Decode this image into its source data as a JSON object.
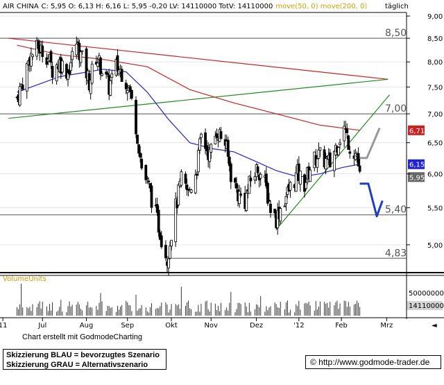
{
  "header": {
    "title": "AIR CHINA",
    "ohlc": "C: 5,95 O: 6,13 H: 6,16 L: 5,95 -0,20 LV: 14110000 TotV: 14110000",
    "ma_label": "move(50, 0) move(200, 0)",
    "period": "täglich"
  },
  "volume_panel": {
    "label": "VolumeUnits",
    "scale_label": "50000000",
    "current_label": "14110000"
  },
  "footer": {
    "credit": "Chart erstellt mit GodmodeCharting",
    "scenario_blue": "Skizzierung BLAU = bevorzugtes Szenario",
    "scenario_gray": "Skizzierung GRAU = Alternativszenario",
    "url": "© http://www.godmode-trader.de"
  },
  "colors": {
    "candle": "#000000",
    "ma50": "#2222cc",
    "ma200": "#cc2222",
    "trendline": "#228822",
    "scenario_blue": "#1a3fbf",
    "scenario_gray": "#999999",
    "level_line": "#555555"
  },
  "chart_data": {
    "type": "candlestick",
    "y_scale": "log",
    "y_range": [
      4.68,
      9.05
    ],
    "y_ticks": [
      "9,00",
      "8,50",
      "8,00",
      "7,50",
      "7,00",
      "6,50",
      "6,00",
      "5,50",
      "5,00"
    ],
    "x_ticks": [
      "11",
      "Jul",
      "Aug",
      "Sep",
      "Okt",
      "Nov",
      "Dez",
      "'12",
      "Feb",
      "Mrz"
    ],
    "price_levels": [
      {
        "value": 8.5,
        "label": "8,50"
      },
      {
        "value": 7.0,
        "label": "7,00"
      },
      {
        "value": 5.4,
        "label": "5,40"
      },
      {
        "value": 4.83,
        "label": "4,83"
      }
    ],
    "last_values": [
      {
        "name": "move(200, 0)",
        "value": 6.71,
        "label": "6,71",
        "color": "#cc2222"
      },
      {
        "name": "move(50, 0)",
        "value": 6.15,
        "label": "6,15",
        "color": "#2222cc"
      },
      {
        "name": "close",
        "value": 5.95,
        "label": "5,95",
        "color": "#666666"
      }
    ],
    "close_series": [
      [
        "2011-06-20",
        7.3
      ],
      [
        "2011-06-24",
        7.6
      ],
      [
        "2011-06-29",
        8.1
      ],
      [
        "2011-07-05",
        8.3
      ],
      [
        "2011-07-11",
        8.15
      ],
      [
        "2011-07-15",
        7.85
      ],
      [
        "2011-07-20",
        8.0
      ],
      [
        "2011-07-26",
        7.8
      ],
      [
        "2011-08-01",
        8.4
      ],
      [
        "2011-08-05",
        8.05
      ],
      [
        "2011-08-10",
        7.6
      ],
      [
        "2011-08-15",
        8.1
      ],
      [
        "2011-08-19",
        7.85
      ],
      [
        "2011-08-24",
        7.5
      ],
      [
        "2011-08-29",
        7.9
      ],
      [
        "2011-09-02",
        7.8
      ],
      [
        "2011-09-07",
        7.5
      ],
      [
        "2011-09-12",
        6.8
      ],
      [
        "2011-09-16",
        6.1
      ],
      [
        "2011-09-21",
        5.8
      ],
      [
        "2011-09-26",
        5.4
      ],
      [
        "2011-09-30",
        5.1
      ],
      [
        "2011-10-04",
        4.83
      ],
      [
        "2011-10-10",
        5.5
      ],
      [
        "2011-10-14",
        5.9
      ],
      [
        "2011-10-19",
        5.7
      ],
      [
        "2011-10-25",
        6.1
      ],
      [
        "2011-10-28",
        6.6
      ],
      [
        "2011-11-03",
        6.3
      ],
      [
        "2011-11-08",
        6.7
      ],
      [
        "2011-11-14",
        6.5
      ],
      [
        "2011-11-18",
        6.0
      ],
      [
        "2011-11-23",
        5.7
      ],
      [
        "2011-11-28",
        5.6
      ],
      [
        "2011-12-02",
        5.9
      ],
      [
        "2011-12-07",
        6.1
      ],
      [
        "2011-12-12",
        5.85
      ],
      [
        "2011-12-16",
        5.5
      ],
      [
        "2011-12-20",
        5.35
      ],
      [
        "2011-12-23",
        5.5
      ],
      [
        "2011-12-29",
        5.75
      ],
      [
        "2012-01-04",
        6.0
      ],
      [
        "2012-01-09",
        5.85
      ],
      [
        "2012-01-13",
        6.1
      ],
      [
        "2012-01-18",
        6.3
      ],
      [
        "2012-01-27",
        6.15
      ],
      [
        "2012-02-01",
        6.5
      ],
      [
        "2012-02-06",
        6.75
      ],
      [
        "2012-02-10",
        6.45
      ],
      [
        "2012-02-15",
        6.3
      ],
      [
        "2012-02-17",
        5.95
      ]
    ],
    "ma50_series": [
      [
        "2011-06-20",
        7.4
      ],
      [
        "2011-07-20",
        7.7
      ],
      [
        "2011-08-20",
        7.85
      ],
      [
        "2011-09-05",
        7.8
      ],
      [
        "2011-09-20",
        7.4
      ],
      [
        "2011-10-05",
        6.9
      ],
      [
        "2011-10-20",
        6.5
      ],
      [
        "2011-11-05",
        6.4
      ],
      [
        "2011-11-20",
        6.35
      ],
      [
        "2011-12-05",
        6.2
      ],
      [
        "2011-12-20",
        6.05
      ],
      [
        "2012-01-05",
        5.95
      ],
      [
        "2012-01-20",
        6.0
      ],
      [
        "2012-02-05",
        6.1
      ],
      [
        "2012-02-17",
        6.15
      ]
    ],
    "ma200_series": [
      [
        "2011-06-20",
        8.35
      ],
      [
        "2011-07-20",
        8.15
      ],
      [
        "2011-08-20",
        8.05
      ],
      [
        "2011-09-20",
        7.9
      ],
      [
        "2011-10-20",
        7.45
      ],
      [
        "2011-11-20",
        7.2
      ],
      [
        "2011-12-20",
        7.0
      ],
      [
        "2012-01-20",
        6.8
      ],
      [
        "2012-02-17",
        6.71
      ]
    ],
    "trendlines": [
      {
        "name": "falling",
        "from": [
          "2011-06-14",
          8.5
        ],
        "to": [
          "2012-03-08",
          7.65
        ]
      },
      {
        "name": "rising-long",
        "from": [
          "2011-06-14",
          6.92
        ],
        "to": [
          "2012-03-08",
          7.65
        ]
      },
      {
        "name": "rising-short",
        "from": [
          "2011-12-20",
          5.2
        ],
        "to": [
          "2012-03-09",
          7.35
        ]
      }
    ],
    "scenario_blue": [
      [
        "2012-02-17",
        5.85
      ],
      [
        "2012-02-23",
        5.85
      ],
      [
        "2012-02-29",
        5.38
      ],
      [
        "2012-03-04",
        5.6
      ]
    ],
    "scenario_gray": [
      [
        "2012-02-17",
        6.25
      ],
      [
        "2012-02-22",
        6.25
      ],
      [
        "2012-03-02",
        6.75
      ]
    ],
    "volume_max": 50000000,
    "volume_last": 14110000
  }
}
